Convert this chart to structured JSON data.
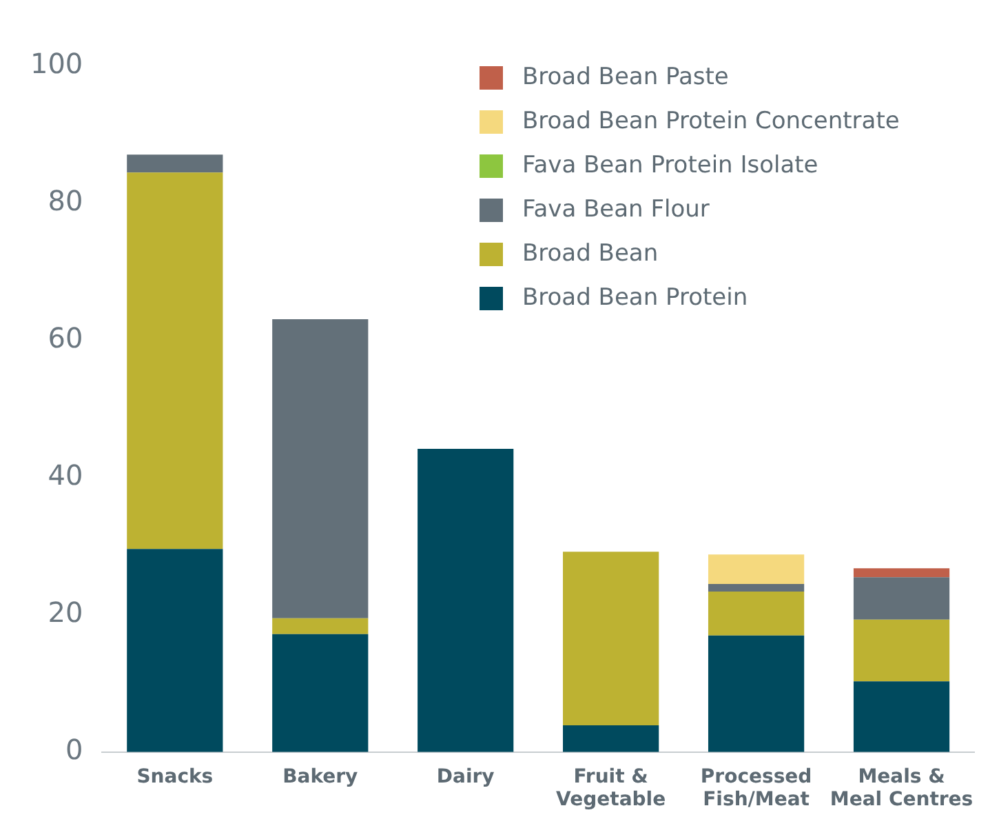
{
  "chart_data": {
    "type": "bar",
    "stacked": true,
    "categories": [
      "Snacks",
      "Bakery",
      "Dairy",
      "Fruit & Vegetable",
      "Processed Fish/Meat",
      "Meals & Meal Centres"
    ],
    "series": [
      {
        "name": "Broad Bean Protein",
        "color": "#004a5e",
        "values": [
          29.6,
          17.2,
          44.2,
          3.9,
          17.0,
          10.3
        ]
      },
      {
        "name": "Broad Bean",
        "color": "#bdb232",
        "values": [
          54.9,
          2.3,
          0,
          25.3,
          6.4,
          9.0
        ]
      },
      {
        "name": "Fava Bean Flour",
        "color": "#637079",
        "values": [
          2.6,
          43.6,
          0,
          0,
          1.1,
          6.2
        ]
      },
      {
        "name": "Fava Bean Protein Isolate",
        "color": "#8dc63f",
        "values": [
          0,
          0,
          0,
          0,
          0,
          0
        ]
      },
      {
        "name": "Broad Bean Protein Concentrate",
        "color": "#f5d97e",
        "values": [
          0,
          0,
          0,
          0,
          4.3,
          0
        ]
      },
      {
        "name": "Broad Bean Paste",
        "color": "#c0604a",
        "values": [
          0,
          0,
          0,
          0,
          0,
          1.3
        ]
      }
    ],
    "ylim": [
      0,
      100
    ],
    "yticks": [
      0,
      20,
      40,
      60,
      80,
      100
    ],
    "grid": false,
    "legend": "top right"
  }
}
